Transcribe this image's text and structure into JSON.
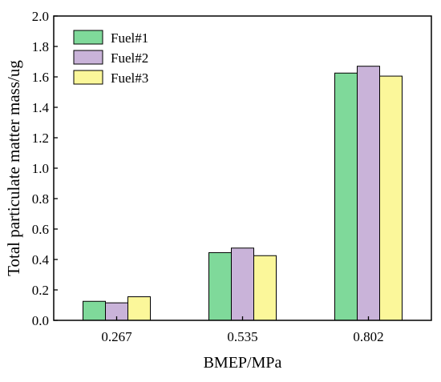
{
  "chart_data": {
    "type": "bar",
    "xlabel": "BMEP/MPa",
    "ylabel": "Total particulate matter mass/ug",
    "categories": [
      "0.267",
      "0.535",
      "0.802"
    ],
    "ylim": [
      0,
      2.0
    ],
    "yticks": [
      "0.0",
      "0.2",
      "0.4",
      "0.6",
      "0.8",
      "1.0",
      "1.2",
      "1.4",
      "1.6",
      "1.8",
      "2.0"
    ],
    "grid": false,
    "legend_position": "top-left",
    "series": [
      {
        "name": "Fuel#1",
        "color": "#7fd99a",
        "values": [
          0.125,
          0.445,
          1.625
        ]
      },
      {
        "name": "Fuel#2",
        "color": "#c9b3d9",
        "values": [
          0.115,
          0.475,
          1.67
        ]
      },
      {
        "name": "Fuel#3",
        "color": "#fbf79a",
        "values": [
          0.155,
          0.425,
          1.605
        ]
      }
    ]
  }
}
